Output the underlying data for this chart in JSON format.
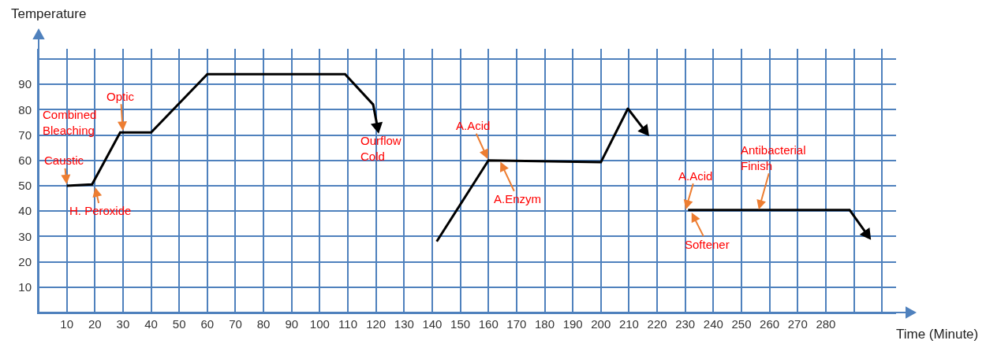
{
  "chart_data": {
    "type": "line",
    "xlabel": "Time (Minute)",
    "ylabel": "Temperature",
    "xlim": [
      0,
      305
    ],
    "xticks": [
      10,
      20,
      30,
      40,
      50,
      60,
      70,
      80,
      90,
      100,
      110,
      120,
      130,
      140,
      150,
      160,
      170,
      180,
      190,
      200,
      210,
      220,
      230,
      240,
      250,
      260,
      270,
      280,
      {
        "value": 290,
        "label": null
      },
      {
        "value": 300,
        "label": null
      }
    ],
    "ylim": [
      0,
      104
    ],
    "yticks": [
      10,
      20,
      30,
      40,
      50,
      60,
      70,
      80,
      90,
      {
        "value": 100,
        "label": null
      }
    ],
    "grid": true,
    "marker": "none",
    "line_style": "solid",
    "series": [
      {
        "color": "#000000",
        "x": [
          10,
          19,
          29,
          40,
          60,
          109,
          119
        ],
        "values": [
          50,
          50.5,
          71,
          71,
          94,
          94,
          82
        ]
      },
      {
        "color": "#000000",
        "x": [
          141.6,
          160,
          200,
          209.6
        ],
        "values": [
          28,
          60,
          59.3,
          80.4
        ]
      },
      {
        "color": "#000000",
        "x": [
          231,
          288.5
        ],
        "values": [
          40.4,
          40.4
        ]
      }
    ],
    "annotations": [
      {
        "text": "Caustic",
        "x": 10,
        "y": 50
      },
      {
        "text": "H. Peroxide",
        "x": 20,
        "y": 50
      },
      {
        "text": "Optic",
        "x": 30,
        "y": 71
      },
      "Combined Bleaching",
      "Ourflow Cold",
      {
        "text": "A.Acid",
        "x": 160,
        "y": 60
      },
      {
        "text": "A.Enzym",
        "x": 164,
        "y": 60
      },
      {
        "text": "A.Acid",
        "x": 230,
        "y": 40
      },
      {
        "text": "Softener",
        "x": 232,
        "y": 40
      },
      {
        "text": "Antibacterial Finish",
        "x": 256,
        "y": 40
      }
    ]
  }
}
